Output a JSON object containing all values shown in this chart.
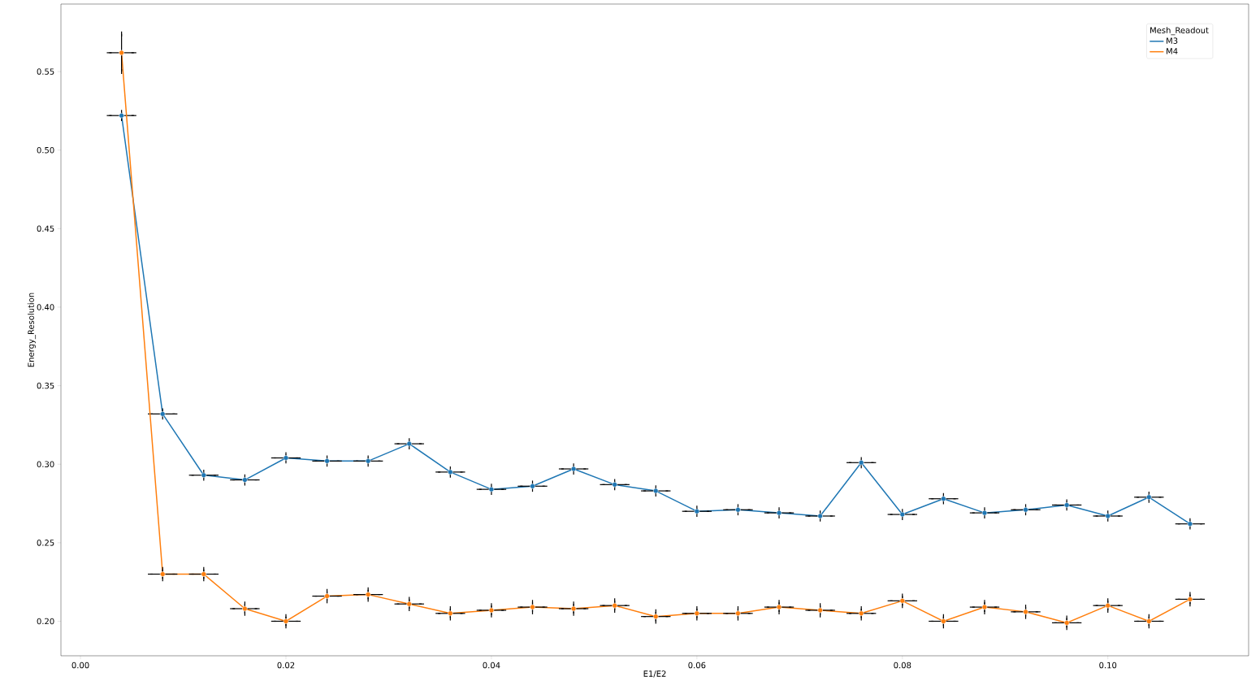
{
  "chart_data": {
    "type": "line",
    "xlabel": "E1/E2",
    "ylabel": "Energy_Resolution",
    "legend_title": "Mesh_Readout",
    "legend": "top right",
    "marker": "circle",
    "x": [
      0.004,
      0.008,
      0.012,
      0.016,
      0.02,
      0.024,
      0.028,
      0.032,
      0.036,
      0.04,
      0.044,
      0.048,
      0.052,
      0.056,
      0.06,
      0.064,
      0.068,
      0.072,
      0.076,
      0.08,
      0.084,
      0.088,
      0.092,
      0.096,
      0.1,
      0.104,
      0.108
    ],
    "series": [
      {
        "name": "M3",
        "color": "#1f77b4",
        "values": [
          0.522,
          0.332,
          0.293,
          0.29,
          0.304,
          0.302,
          0.302,
          0.313,
          0.295,
          0.284,
          0.286,
          0.297,
          0.287,
          0.283,
          0.27,
          0.271,
          0.269,
          0.267,
          0.301,
          0.268,
          0.278,
          0.269,
          0.271,
          0.274,
          0.267,
          0.279,
          0.262
        ],
        "errors": [
          0.002,
          0.002,
          0.002,
          0.002,
          0.002,
          0.002,
          0.002,
          0.002,
          0.002,
          0.002,
          0.002,
          0.002,
          0.002,
          0.002,
          0.002,
          0.002,
          0.002,
          0.002,
          0.002,
          0.002,
          0.002,
          0.002,
          0.002,
          0.002,
          0.002,
          0.002,
          0.002
        ],
        "xerrors": [
          0.0012,
          0.0012,
          0.0012,
          0.0012,
          0.0012,
          0.0012,
          0.0012,
          0.0012,
          0.0012,
          0.0012,
          0.0012,
          0.0012,
          0.0012,
          0.0012,
          0.0012,
          0.0012,
          0.0012,
          0.0012,
          0.0012,
          0.0012,
          0.0012,
          0.0012,
          0.0012,
          0.0012,
          0.0012,
          0.0012,
          0.0012
        ]
      },
      {
        "name": "M4",
        "color": "#ff7f0e",
        "values": [
          0.562,
          0.23,
          0.23,
          0.208,
          0.2,
          0.216,
          0.217,
          0.211,
          0.205,
          0.207,
          0.209,
          0.208,
          0.21,
          0.203,
          0.205,
          0.205,
          0.209,
          0.207,
          0.205,
          0.213,
          0.2,
          0.209,
          0.206,
          0.199,
          0.21,
          0.2,
          0.214
        ],
        "errors": [
          0.012,
          0.003,
          0.003,
          0.003,
          0.003,
          0.003,
          0.003,
          0.003,
          0.003,
          0.003,
          0.003,
          0.003,
          0.003,
          0.003,
          0.003,
          0.003,
          0.003,
          0.003,
          0.003,
          0.003,
          0.003,
          0.003,
          0.003,
          0.003,
          0.003,
          0.003,
          0.003
        ],
        "xerrors": [
          0.0012,
          0.0012,
          0.0012,
          0.0012,
          0.0012,
          0.0012,
          0.0012,
          0.0012,
          0.0012,
          0.0012,
          0.0012,
          0.0012,
          0.0012,
          0.0012,
          0.0012,
          0.0012,
          0.0012,
          0.0012,
          0.0012,
          0.0012,
          0.0012,
          0.0012,
          0.0012,
          0.0012,
          0.0012,
          0.0012,
          0.0012
        ]
      }
    ],
    "xlim": [
      -0.0019,
      0.1137
    ],
    "ylim": [
      0.178,
      0.593
    ],
    "xticks": [
      {
        "value": 0,
        "label": "0.00"
      },
      {
        "value": 0.02,
        "label": "0.02"
      },
      {
        "value": 0.04,
        "label": "0.04"
      },
      {
        "value": 0.06,
        "label": "0.06"
      },
      {
        "value": 0.08,
        "label": "0.08"
      },
      {
        "value": 0.1,
        "label": "0.10"
      }
    ],
    "yticks": [
      {
        "value": 0.2,
        "label": "0.20"
      },
      {
        "value": 0.25,
        "label": "0.25"
      },
      {
        "value": 0.3,
        "label": "0.30"
      },
      {
        "value": 0.35,
        "label": "0.35"
      },
      {
        "value": 0.4,
        "label": "0.40"
      },
      {
        "value": 0.45,
        "label": "0.45"
      },
      {
        "value": 0.5,
        "label": "0.50"
      },
      {
        "value": 0.55,
        "label": "0.55"
      }
    ]
  }
}
